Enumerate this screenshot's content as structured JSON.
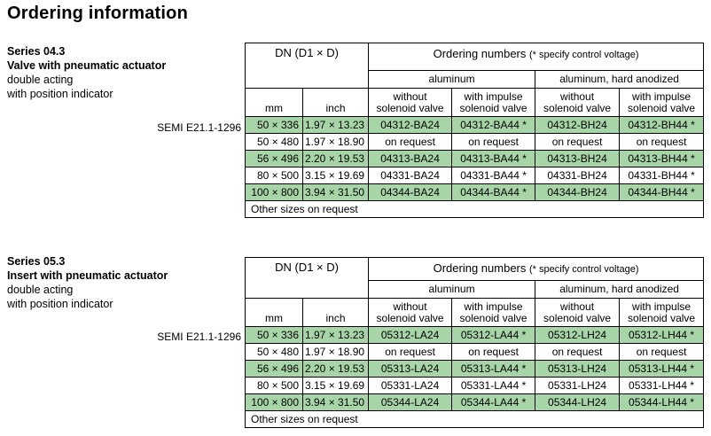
{
  "title": "Ordering information",
  "series": [
    {
      "label_lines": [
        "Series 04.3",
        "Valve with pneumatic actuator",
        "double acting",
        "with position indicator"
      ],
      "semi": "SEMI E21.1-1296",
      "head_dn": "DN (D1 × D)",
      "head_ordering": "Ordering numbers",
      "head_ordering_note": "(* specify control voltage)",
      "head_aluminum": "aluminum",
      "head_anodized": "aluminum, hard anodized",
      "col_without": [
        "without",
        "solenoid valve"
      ],
      "col_with": [
        "with impulse",
        "solenoid valve"
      ],
      "unit_mm": "mm",
      "unit_inch": "inch",
      "rows": [
        {
          "mm": "50 × 336",
          "inch": "1.97 × 13.23",
          "a": "04312-BA24",
          "b": "04312-BA44 *",
          "c": "04312-BH24",
          "d": "04312-BH44 *",
          "highlight": true
        },
        {
          "mm": "50 × 480",
          "inch": "1.97 × 18.90",
          "a": "on request",
          "b": "on request",
          "c": "on request",
          "d": "on request",
          "highlight": false
        },
        {
          "mm": "56 × 496",
          "inch": "2.20 × 19.53",
          "a": "04313-BA24",
          "b": "04313-BA44 *",
          "c": "04313-BH24",
          "d": "04313-BH44 *",
          "highlight": true
        },
        {
          "mm": "80 × 500",
          "inch": "3.15 × 19.69",
          "a": "04331-BA24",
          "b": "04331-BA44 *",
          "c": "04331-BH24",
          "d": "04331-BH44 *",
          "highlight": false
        },
        {
          "mm": "100 × 800",
          "inch": "3.94 × 31.50",
          "a": "04344-BA24",
          "b": "04344-BA44 *",
          "c": "04344-BH24",
          "d": "04344-BH44 *",
          "highlight": true
        }
      ],
      "footer": "Other sizes on request"
    },
    {
      "label_lines": [
        "Series 05.3",
        "Insert with pneumatic actuator",
        "double acting",
        "with position indicator"
      ],
      "semi": "SEMI E21.1-1296",
      "head_dn": "DN (D1 × D)",
      "head_ordering": "Ordering numbers",
      "head_ordering_note": "(* specify control voltage)",
      "head_aluminum": "aluminum",
      "head_anodized": "aluminum, hard anodized",
      "col_without": [
        "without",
        "solenoid valve"
      ],
      "col_with": [
        "with impulse",
        "solenoid valve"
      ],
      "unit_mm": "mm",
      "unit_inch": "inch",
      "rows": [
        {
          "mm": "50 × 336",
          "inch": "1.97 × 13.23",
          "a": "05312-LA24",
          "b": "05312-LA44 *",
          "c": "05312-LH24",
          "d": "05312-LH44 *",
          "highlight": true
        },
        {
          "mm": "50 × 480",
          "inch": "1.97 × 18.90",
          "a": "on request",
          "b": "on request",
          "c": "on request",
          "d": "on request",
          "highlight": false
        },
        {
          "mm": "56 × 496",
          "inch": "2.20 × 19.53",
          "a": "05313-LA24",
          "b": "05313-LA44 *",
          "c": "05313-LH24",
          "d": "05313-LH44 *",
          "highlight": true
        },
        {
          "mm": "80 × 500",
          "inch": "3.15 × 19.69",
          "a": "05331-LA24",
          "b": "05331-LA44 *",
          "c": "05331-LH24",
          "d": "05331-LH44 *",
          "highlight": false
        },
        {
          "mm": "100 × 800",
          "inch": "3.94 × 31.50",
          "a": "05344-LA24",
          "b": "05344-LA44 *",
          "c": "05344-LH24",
          "d": "05344-LH44 *",
          "highlight": true
        }
      ],
      "footer": "Other sizes on request"
    }
  ]
}
